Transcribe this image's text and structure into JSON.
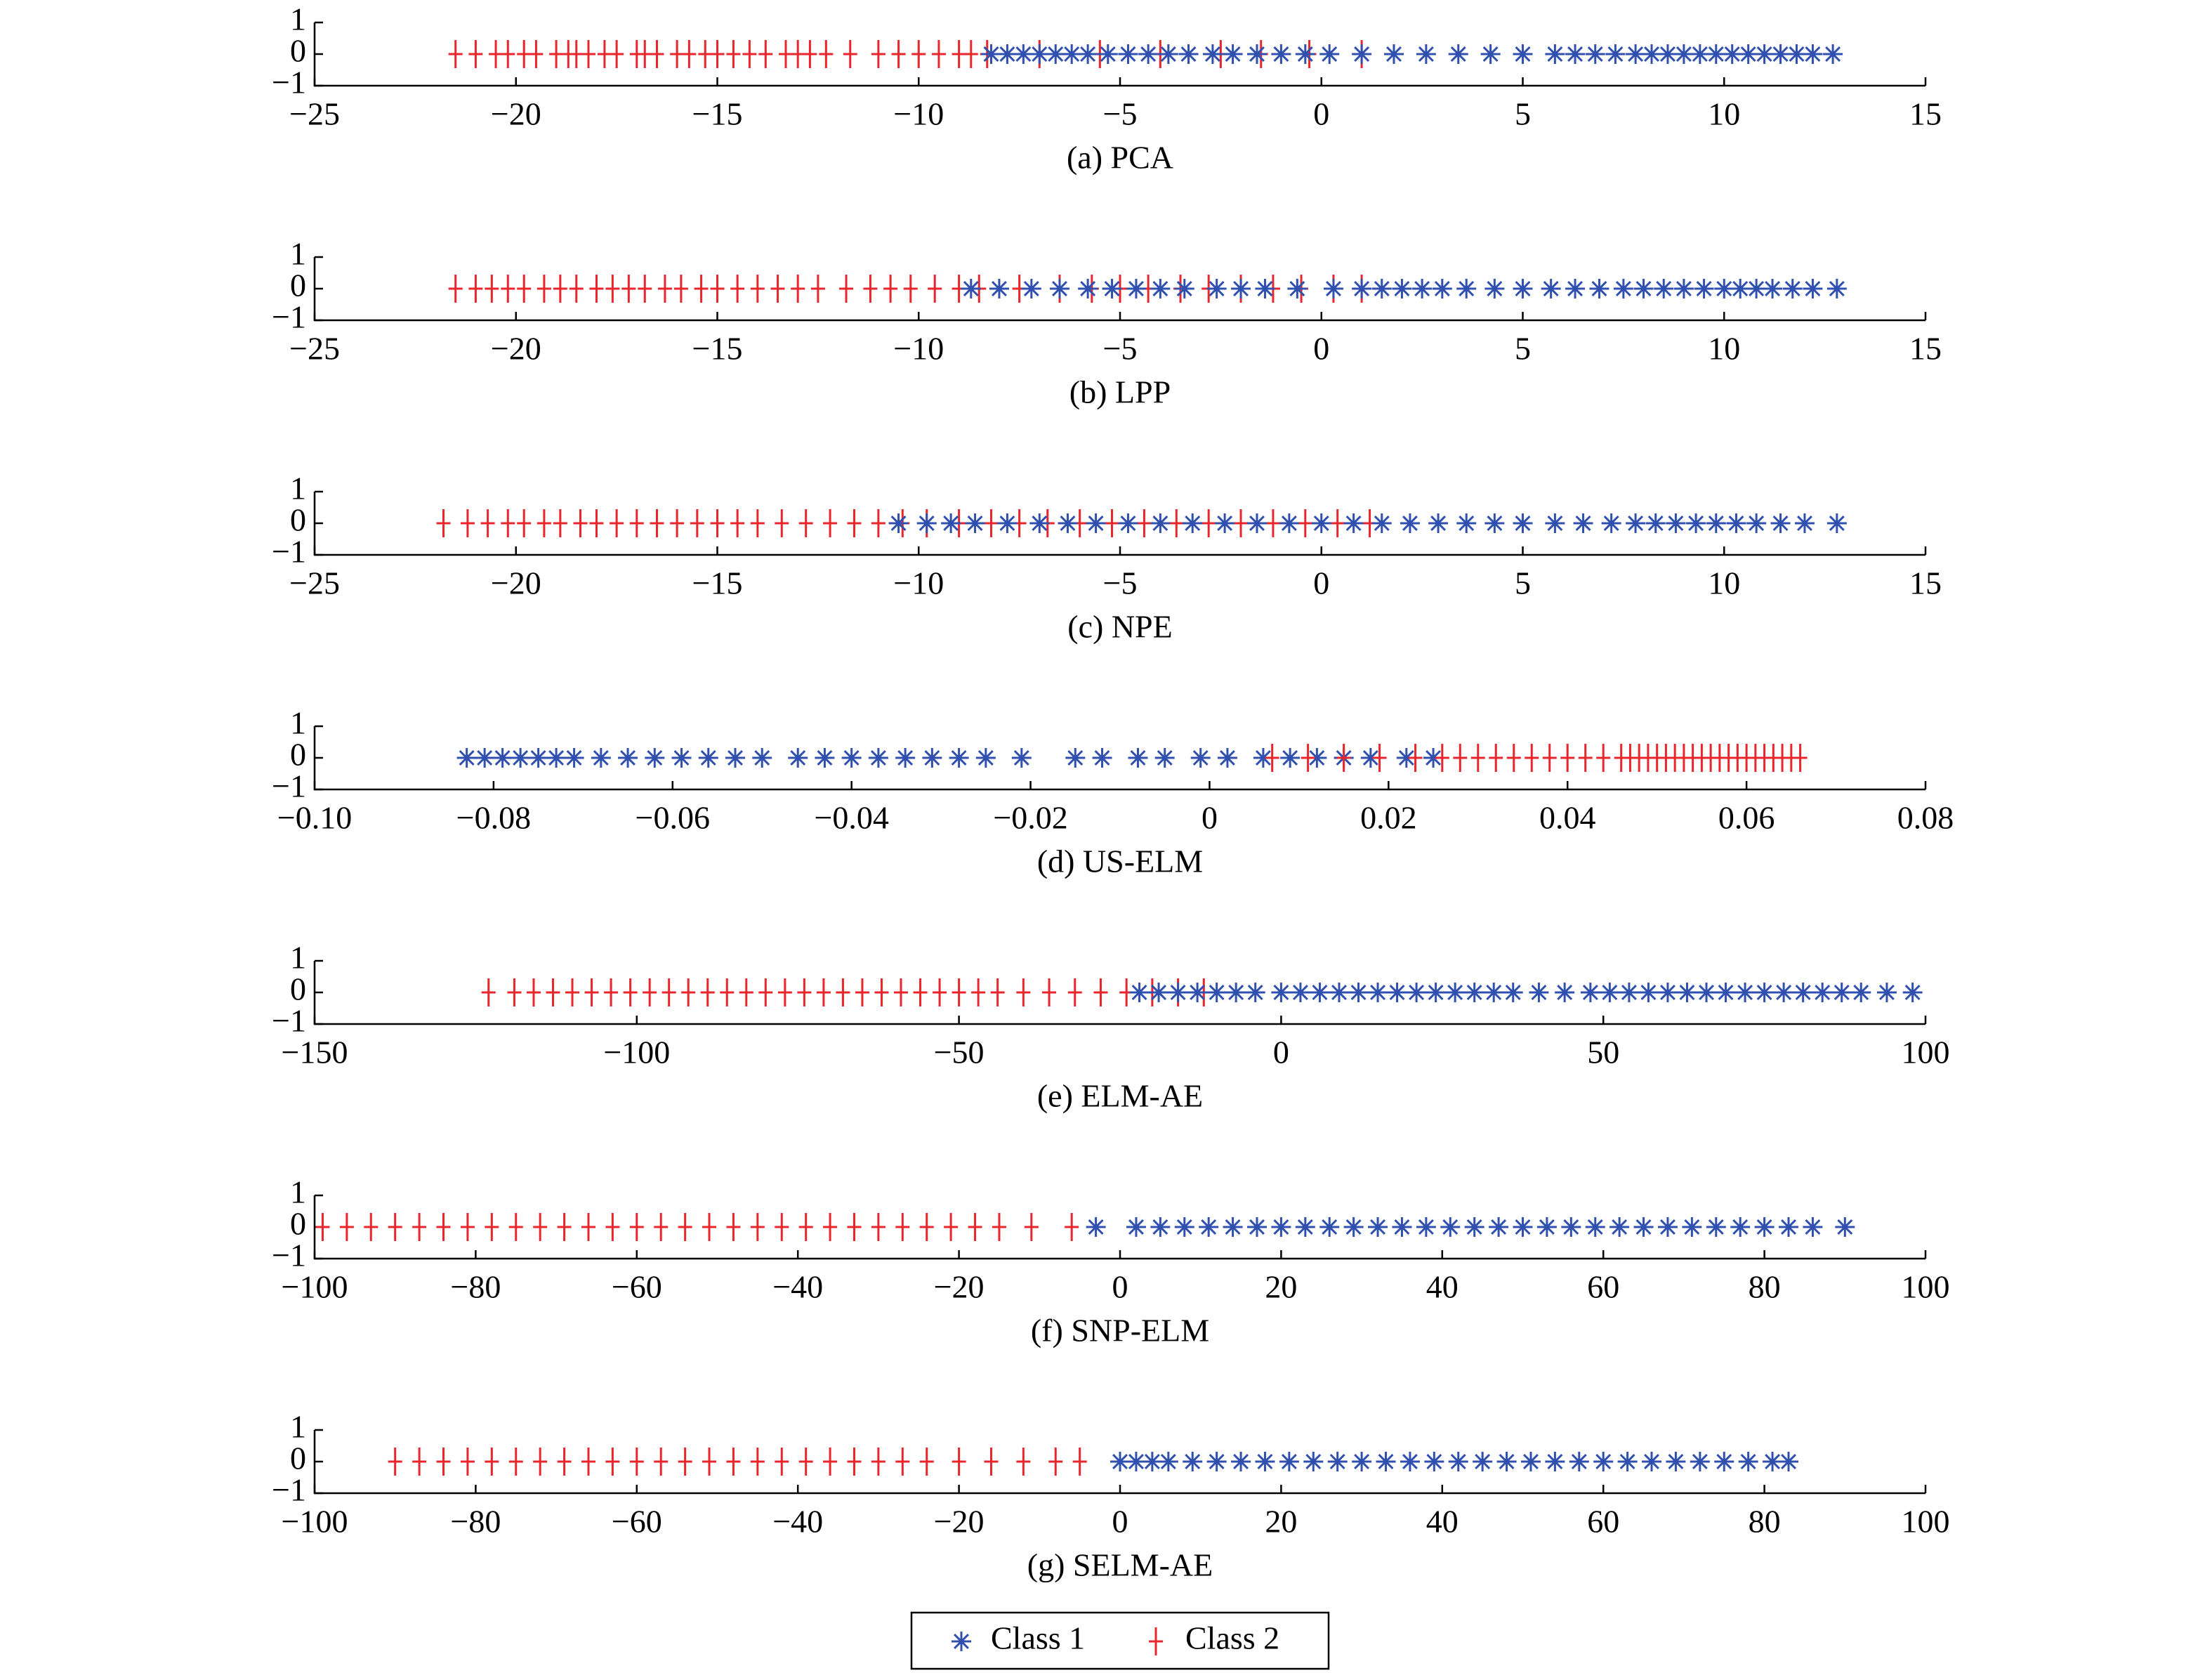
{
  "legend": {
    "entries": [
      {
        "name": "Class 1",
        "color": "#3050b0",
        "marker": "star"
      },
      {
        "name": "Class 2",
        "color": "#e8262b",
        "marker": "plus"
      }
    ]
  },
  "chart_data": [
    {
      "type": "strip",
      "title": "(a) PCA",
      "xlim": [
        -25,
        15
      ],
      "xticks": [
        {
          "value": -25,
          "label": "−25"
        },
        {
          "value": -20,
          "label": "−20"
        },
        {
          "value": -15,
          "label": "−15"
        },
        {
          "value": -10,
          "label": "−10"
        },
        {
          "value": -5,
          "label": "−5"
        },
        0,
        5,
        10,
        15
      ],
      "ylim": [
        -1,
        1
      ],
      "yticks": [
        {
          "value": -1,
          "label": "−1"
        },
        0,
        1
      ],
      "series": [
        {
          "color": "#3050b0",
          "marker": "star",
          "values": [
            -8.2,
            -7.8,
            -7.4,
            -7,
            -6.6,
            -6.2,
            -5.8,
            -5.3,
            -4.8,
            -4.3,
            -3.8,
            -3.3,
            -2.7,
            -2.2,
            -1.6,
            -1,
            -0.4,
            0.2,
            1,
            1.8,
            2.6,
            3.4,
            4.2,
            5,
            5.8,
            6.3,
            6.8,
            7.3,
            7.8,
            8.2,
            8.6,
            9,
            9.4,
            9.8,
            10.2,
            10.6,
            11,
            11.4,
            11.8,
            12.2,
            12.7
          ]
        },
        {
          "color": "#e8262b",
          "marker": "plus",
          "values": [
            -21.5,
            -21,
            -20.5,
            -20.2,
            -19.8,
            -19.5,
            -19,
            -18.7,
            -18.5,
            -18.2,
            -17.8,
            -17.5,
            -17,
            -16.8,
            -16.5,
            -16,
            -15.7,
            -15.3,
            -15,
            -14.6,
            -14.2,
            -13.8,
            -13.3,
            -13,
            -12.7,
            -12.3,
            -11.7,
            -11,
            -10.5,
            -10,
            -9.5,
            -9,
            -8.7,
            -8.3,
            -7,
            -5.5,
            -4,
            -2.5,
            -1.5,
            -0.3,
            1
          ]
        }
      ]
    },
    {
      "type": "strip",
      "title": "(b) LPP",
      "xlim": [
        -25,
        15
      ],
      "xticks": [
        {
          "value": -25,
          "label": "−25"
        },
        {
          "value": -20,
          "label": "−20"
        },
        {
          "value": -15,
          "label": "−15"
        },
        {
          "value": -10,
          "label": "−10"
        },
        {
          "value": -5,
          "label": "−5"
        },
        0,
        5,
        10,
        15
      ],
      "ylim": [
        -1,
        1
      ],
      "yticks": [
        {
          "value": -1,
          "label": "−1"
        },
        0,
        1
      ],
      "series": [
        {
          "color": "#3050b0",
          "marker": "star",
          "values": [
            -8.7,
            -8,
            -7.2,
            -6.5,
            -5.8,
            -5.2,
            -4.6,
            -4,
            -3.4,
            -2.6,
            -2,
            -1.4,
            -0.6,
            0.3,
            1,
            1.5,
            2,
            2.5,
            3,
            3.6,
            4.3,
            5,
            5.7,
            6.3,
            6.9,
            7.5,
            8,
            8.5,
            9,
            9.5,
            10,
            10.4,
            10.8,
            11.2,
            11.7,
            12.2,
            12.8
          ]
        },
        {
          "color": "#e8262b",
          "marker": "plus",
          "values": [
            -21.5,
            -21,
            -20.6,
            -20.2,
            -19.8,
            -19.3,
            -18.9,
            -18.5,
            -18,
            -17.6,
            -17.2,
            -16.8,
            -16.3,
            -15.9,
            -15.4,
            -15,
            -14.5,
            -14,
            -13.5,
            -13,
            -12.5,
            -11.8,
            -11.2,
            -10.7,
            -10.2,
            -9.6,
            -9,
            -8.5,
            -7.5,
            -6.5,
            -5.7,
            -5,
            -4.3,
            -3.5,
            -2.8,
            -2,
            -1.2,
            -0.5,
            0.3,
            1
          ]
        }
      ]
    },
    {
      "type": "strip",
      "title": "(c) NPE",
      "xlim": [
        -25,
        15
      ],
      "xticks": [
        {
          "value": -25,
          "label": "−25"
        },
        {
          "value": -20,
          "label": "−20"
        },
        {
          "value": -15,
          "label": "−15"
        },
        {
          "value": -10,
          "label": "−10"
        },
        {
          "value": -5,
          "label": "−5"
        },
        0,
        5,
        10,
        15
      ],
      "ylim": [
        -1,
        1
      ],
      "yticks": [
        {
          "value": -1,
          "label": "−1"
        },
        0,
        1
      ],
      "series": [
        {
          "color": "#3050b0",
          "marker": "star",
          "values": [
            -10.5,
            -9.8,
            -9.2,
            -8.6,
            -7.8,
            -7,
            -6.3,
            -5.6,
            -4.8,
            -4,
            -3.2,
            -2.4,
            -1.6,
            -0.8,
            0,
            0.8,
            1.5,
            2.2,
            2.9,
            3.6,
            4.3,
            5,
            5.8,
            6.5,
            7.2,
            7.8,
            8.3,
            8.8,
            9.3,
            9.8,
            10.3,
            10.8,
            11.4,
            12,
            12.8
          ]
        },
        {
          "color": "#e8262b",
          "marker": "plus",
          "values": [
            -21.8,
            -21.2,
            -20.7,
            -20.2,
            -19.8,
            -19.3,
            -18.9,
            -18.4,
            -18,
            -17.5,
            -17,
            -16.5,
            -16,
            -15.5,
            -15,
            -14.5,
            -14,
            -13.4,
            -12.8,
            -12.2,
            -11.6,
            -11,
            -10.4,
            -9.8,
            -9,
            -8.2,
            -7.5,
            -6.8,
            -6,
            -5.2,
            -4.4,
            -3.6,
            -2.8,
            -2,
            -1.2,
            -0.4,
            0.4,
            1.2
          ]
        }
      ]
    },
    {
      "type": "strip",
      "title": "(d) US-ELM",
      "xlim": [
        -0.1,
        0.08
      ],
      "xticks": [
        {
          "value": -0.1,
          "label": "−0.10"
        },
        {
          "value": -0.08,
          "label": "−0.08"
        },
        {
          "value": -0.06,
          "label": "−0.06"
        },
        {
          "value": -0.04,
          "label": "−0.04"
        },
        {
          "value": -0.02,
          "label": "−0.02"
        },
        0,
        0.02,
        0.04,
        0.06,
        0.08
      ],
      "ylim": [
        -1,
        1
      ],
      "yticks": [
        {
          "value": -1,
          "label": "−1"
        },
        0,
        1
      ],
      "series": [
        {
          "color": "#3050b0",
          "marker": "star",
          "values": [
            -0.083,
            -0.081,
            -0.079,
            -0.077,
            -0.075,
            -0.073,
            -0.071,
            -0.068,
            -0.065,
            -0.062,
            -0.059,
            -0.056,
            -0.053,
            -0.05,
            -0.046,
            -0.043,
            -0.04,
            -0.037,
            -0.034,
            -0.031,
            -0.028,
            -0.025,
            -0.021,
            -0.015,
            -0.012,
            -0.008,
            -0.005,
            -0.001,
            0.002,
            0.006,
            0.009,
            0.012,
            0.015,
            0.018,
            0.022,
            0.025
          ]
        },
        {
          "color": "#e8262b",
          "marker": "plus",
          "values": [
            0.007,
            0.011,
            0.015,
            0.019,
            0.023,
            0.026,
            0.028,
            0.03,
            0.032,
            0.034,
            0.036,
            0.038,
            0.04,
            0.042,
            0.044,
            0.046,
            0.047,
            0.048,
            0.049,
            0.05,
            0.051,
            0.052,
            0.053,
            0.054,
            0.055,
            0.056,
            0.057,
            0.058,
            0.059,
            0.06,
            0.061,
            0.062,
            0.063,
            0.064,
            0.065,
            0.066
          ]
        }
      ]
    },
    {
      "type": "strip",
      "title": "(e) ELM-AE",
      "xlim": [
        -150,
        100
      ],
      "xticks": [
        {
          "value": -150,
          "label": "−150"
        },
        {
          "value": -100,
          "label": "−100"
        },
        {
          "value": -50,
          "label": "−50"
        },
        0,
        50,
        100
      ],
      "ylim": [
        -1,
        1
      ],
      "yticks": [
        {
          "value": -1,
          "label": "−1"
        },
        0,
        1
      ],
      "series": [
        {
          "color": "#3050b0",
          "marker": "star",
          "values": [
            -22,
            -19,
            -16,
            -13,
            -10,
            -7,
            -4,
            0,
            3,
            6,
            9,
            12,
            15,
            18,
            21,
            24,
            27,
            30,
            33,
            36,
            40,
            44,
            48,
            51,
            54,
            57,
            60,
            63,
            66,
            69,
            72,
            75,
            78,
            81,
            84,
            87,
            90,
            94,
            98
          ]
        },
        {
          "color": "#e8262b",
          "marker": "plus",
          "values": [
            -123,
            -119,
            -116,
            -113,
            -110,
            -107,
            -104,
            -101,
            -98,
            -95,
            -92,
            -89,
            -86,
            -83,
            -80,
            -77,
            -74,
            -71,
            -68,
            -65,
            -62,
            -59,
            -56,
            -53,
            -50,
            -47,
            -44,
            -40,
            -36,
            -32,
            -28,
            -24,
            -20,
            -16,
            -12
          ]
        }
      ]
    },
    {
      "type": "strip",
      "title": "(f) SNP-ELM",
      "xlim": [
        -100,
        100
      ],
      "xticks": [
        {
          "value": -100,
          "label": "−100"
        },
        {
          "value": -80,
          "label": "−80"
        },
        {
          "value": -60,
          "label": "−60"
        },
        {
          "value": -40,
          "label": "−40"
        },
        {
          "value": -20,
          "label": "−20"
        },
        0,
        20,
        40,
        60,
        80,
        100
      ],
      "ylim": [
        -1,
        1
      ],
      "yticks": [
        {
          "value": -1,
          "label": "−1"
        },
        0,
        1
      ],
      "series": [
        {
          "color": "#3050b0",
          "marker": "star",
          "values": [
            -3,
            2,
            5,
            8,
            11,
            14,
            17,
            20,
            23,
            26,
            29,
            32,
            35,
            38,
            41,
            44,
            47,
            50,
            53,
            56,
            59,
            62,
            65,
            68,
            71,
            74,
            77,
            80,
            83,
            86,
            90
          ]
        },
        {
          "color": "#e8262b",
          "marker": "plus",
          "values": [
            -99,
            -96,
            -93,
            -90,
            -87,
            -84,
            -81,
            -78,
            -75,
            -72,
            -69,
            -66,
            -63,
            -60,
            -57,
            -54,
            -51,
            -48,
            -45,
            -42,
            -39,
            -36,
            -33,
            -30,
            -27,
            -24,
            -21,
            -18,
            -15,
            -11,
            -6
          ]
        }
      ]
    },
    {
      "type": "strip",
      "title": "(g) SELM-AE",
      "xlim": [
        -100,
        100
      ],
      "xticks": [
        {
          "value": -100,
          "label": "−100"
        },
        {
          "value": -80,
          "label": "−80"
        },
        {
          "value": -60,
          "label": "−60"
        },
        {
          "value": -40,
          "label": "−40"
        },
        {
          "value": -20,
          "label": "−20"
        },
        0,
        20,
        40,
        60,
        80,
        100
      ],
      "ylim": [
        -1,
        1
      ],
      "yticks": [
        {
          "value": -1,
          "label": "−1"
        },
        0,
        1
      ],
      "series": [
        {
          "color": "#3050b0",
          "marker": "star",
          "values": [
            0,
            2,
            4,
            6,
            9,
            12,
            15,
            18,
            21,
            24,
            27,
            30,
            33,
            36,
            39,
            42,
            45,
            48,
            51,
            54,
            57,
            60,
            63,
            66,
            69,
            72,
            75,
            78,
            81,
            83
          ]
        },
        {
          "color": "#e8262b",
          "marker": "plus",
          "values": [
            -90,
            -87,
            -84,
            -81,
            -78,
            -75,
            -72,
            -69,
            -66,
            -63,
            -60,
            -57,
            -54,
            -51,
            -48,
            -45,
            -42,
            -39,
            -36,
            -33,
            -30,
            -27,
            -24,
            -20,
            -16,
            -12,
            -8,
            -5
          ]
        }
      ]
    }
  ]
}
